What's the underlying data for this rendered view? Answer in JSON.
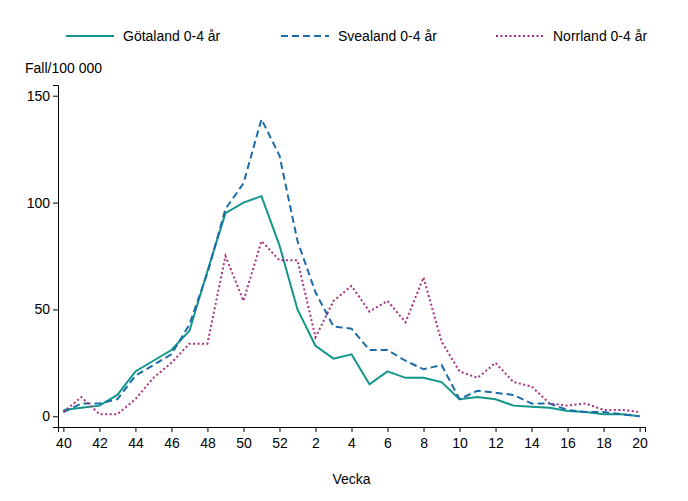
{
  "chart_data": {
    "type": "line",
    "y_label": "Fall/100 000",
    "x_label": "Vecka",
    "categories": [
      "40",
      null,
      "42",
      null,
      "44",
      null,
      "46",
      null,
      "48",
      null,
      "50",
      null,
      "52",
      null,
      "2",
      null,
      "4",
      null,
      "6",
      null,
      "8",
      null,
      "10",
      null,
      "12",
      null,
      "14",
      null,
      "16",
      null,
      "18",
      null,
      "20"
    ],
    "series": [
      {
        "name": "Götaland 0-4 år",
        "color": "#13968a",
        "line_style": "solid",
        "values": [
          3,
          4,
          5,
          10,
          21,
          26,
          31,
          40,
          68,
          95,
          100,
          103,
          80,
          50,
          33,
          27,
          29,
          15,
          21,
          18,
          18,
          16,
          8,
          9,
          8,
          5,
          4.5,
          4,
          2.5,
          2,
          1,
          1,
          0
        ]
      },
      {
        "name": "Svealand 0-4 år",
        "color": "#1b6ca8",
        "line_style": "dashed",
        "values": [
          2,
          6,
          6,
          8,
          19,
          24,
          29,
          43,
          67,
          97,
          109,
          139,
          122,
          82,
          58,
          42,
          41,
          31,
          31,
          26,
          22,
          24,
          8,
          12,
          11,
          10,
          6,
          6,
          3,
          2,
          2,
          1,
          0
        ]
      },
      {
        "name": "Norrland 0-4 år",
        "color": "#a8307f",
        "line_style": "dotted",
        "values": [
          2,
          9,
          1,
          1,
          8,
          18,
          25,
          34,
          34,
          75,
          54,
          82,
          73,
          73,
          37,
          54,
          61,
          49,
          54,
          44,
          65,
          35,
          21,
          18,
          25,
          16,
          14,
          6,
          5,
          6,
          3,
          3,
          2
        ]
      }
    ],
    "ylim": [
      -5,
      155
    ],
    "yticks": [
      0,
      50,
      100,
      150
    ],
    "grid": false,
    "legend": "top"
  }
}
